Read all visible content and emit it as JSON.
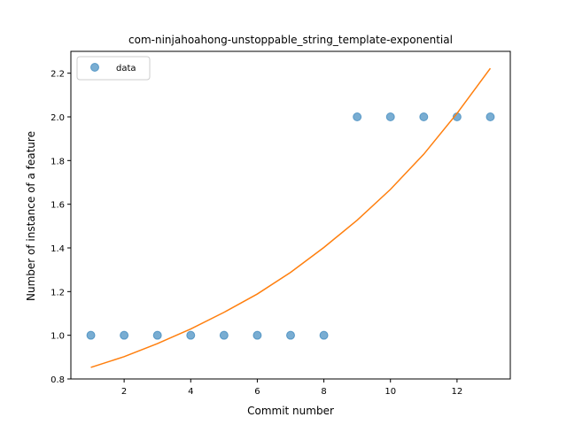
{
  "chart_data": {
    "type": "scatter",
    "title": "com-ninjahoahong-unstoppable_string_template-exponential",
    "xlabel": "Commit number",
    "ylabel": "Number of instance of a feature",
    "xlim": [
      0.4,
      13.6
    ],
    "ylim": [
      0.8,
      2.3
    ],
    "xticks": [
      "2",
      "4",
      "6",
      "8",
      "10",
      "12"
    ],
    "yticks": [
      "0.8",
      "1.0",
      "1.2",
      "1.4",
      "1.6",
      "1.8",
      "2.0",
      "2.2"
    ],
    "grid": false,
    "legend": {
      "position": "top-left",
      "entries": [
        "data"
      ]
    },
    "series": [
      {
        "name": "data",
        "kind": "scatter",
        "color": "#1f77b4",
        "x": [
          1,
          2,
          3,
          4,
          5,
          6,
          7,
          8,
          9,
          10,
          11,
          12,
          13
        ],
        "y": [
          1,
          1,
          1,
          1,
          1,
          1,
          1,
          1,
          2,
          2,
          2,
          2,
          2
        ]
      },
      {
        "kind": "line",
        "color": "#ff7f0e",
        "x": [
          1,
          2,
          3,
          4,
          5,
          6,
          7,
          8,
          9,
          10,
          11,
          12,
          13
        ],
        "y": [
          0.853,
          0.902,
          0.962,
          1.029,
          1.105,
          1.189,
          1.288,
          1.402,
          1.527,
          1.668,
          1.829,
          2.016,
          2.222
        ]
      }
    ]
  }
}
